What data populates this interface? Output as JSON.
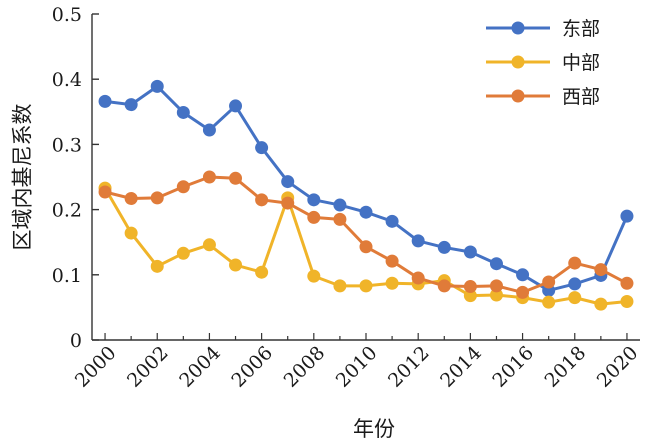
{
  "chart_data": {
    "type": "line",
    "title": "",
    "xlabel": "年份",
    "ylabel": "区域内基尼系数",
    "x": [
      2000,
      2001,
      2002,
      2003,
      2004,
      2005,
      2006,
      2007,
      2008,
      2009,
      2010,
      2011,
      2012,
      2013,
      2014,
      2015,
      2016,
      2017,
      2018,
      2019,
      2020
    ],
    "xticks": [
      "2000",
      "2002",
      "2004",
      "2006",
      "2008",
      "2010",
      "2012",
      "2014",
      "2016",
      "2018",
      "2020"
    ],
    "xlim": [
      1999.5,
      2020.5
    ],
    "ylim": [
      0,
      0.5
    ],
    "yticks": [
      "0",
      "0.1",
      "0.2",
      "0.3",
      "0.4",
      "0.5"
    ],
    "grid": false,
    "legend_position": "top-right",
    "series": [
      {
        "name": "东部",
        "color": "#4472c4",
        "values": [
          0.366,
          0.361,
          0.389,
          0.349,
          0.322,
          0.359,
          0.295,
          0.243,
          0.215,
          0.207,
          0.196,
          0.182,
          0.152,
          0.142,
          0.135,
          0.117,
          0.1,
          0.076,
          0.086,
          0.099,
          0.19
        ]
      },
      {
        "name": "中部",
        "color": "#f0b429",
        "values": [
          0.233,
          0.164,
          0.113,
          0.133,
          0.146,
          0.115,
          0.104,
          0.218,
          0.098,
          0.083,
          0.083,
          0.087,
          0.086,
          0.091,
          0.068,
          0.069,
          0.065,
          0.058,
          0.065,
          0.055,
          0.059
        ]
      },
      {
        "name": "西部",
        "color": "#e07b39",
        "values": [
          0.227,
          0.217,
          0.218,
          0.235,
          0.25,
          0.248,
          0.215,
          0.21,
          0.188,
          0.185,
          0.143,
          0.121,
          0.095,
          0.083,
          0.082,
          0.083,
          0.073,
          0.089,
          0.118,
          0.108,
          0.087
        ]
      }
    ]
  }
}
